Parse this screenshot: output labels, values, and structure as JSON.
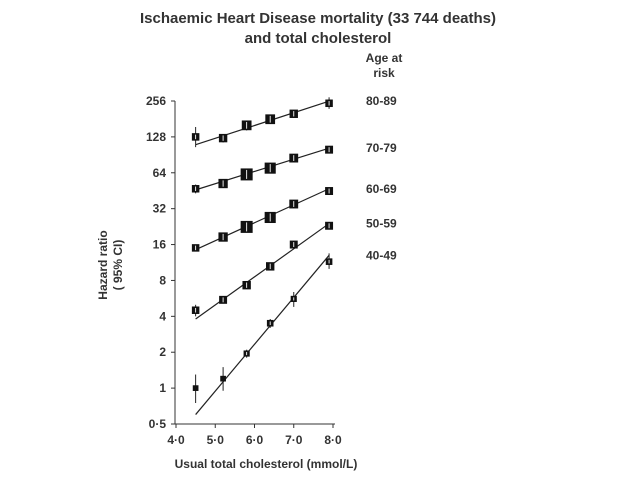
{
  "chart_data": {
    "type": "scatter",
    "title_lines": [
      "Ischaemic Heart Disease mortality (33 744 deaths)",
      "and total cholesterol"
    ],
    "xlabel": "Usual total cholesterol (mmol/L)",
    "ylabel_lines": [
      "Hazard ratio",
      "( 95% CI)"
    ],
    "legend_title_lines": [
      "Age at",
      "risk"
    ],
    "y_scale": "log2",
    "xlim": [
      4.0,
      8.0
    ],
    "ylim": [
      0.5,
      256
    ],
    "x_ticks": [
      4.0,
      5.0,
      6.0,
      7.0,
      8.0
    ],
    "x_tick_labels": [
      "4·0",
      "5·0",
      "6·0",
      "7·0",
      "8·0"
    ],
    "y_ticks": [
      0.5,
      1,
      2,
      4,
      8,
      16,
      32,
      64,
      128,
      256
    ],
    "y_tick_labels": [
      "0·5",
      "1",
      "2",
      "4",
      "8",
      "16",
      "32",
      "64",
      "128",
      "256"
    ],
    "grid": false,
    "series": [
      {
        "name": "80-89",
        "x": [
          4.5,
          5.2,
          5.8,
          6.4,
          7.0,
          7.9
        ],
        "y": [
          128,
          125,
          160,
          180,
          200,
          245
        ],
        "y_low": [
          105,
          115,
          145,
          165,
          185,
          220
        ],
        "y_high": [
          155,
          135,
          175,
          195,
          215,
          275
        ],
        "size": [
          0.5,
          0.6,
          0.75,
          0.75,
          0.6,
          0.5
        ],
        "fit": [
          [
            4.5,
            110
          ],
          [
            7.9,
            255
          ]
        ]
      },
      {
        "name": "70-79",
        "x": [
          4.5,
          5.2,
          5.8,
          6.4,
          7.0,
          7.9
        ],
        "y": [
          47,
          52,
          62,
          70,
          85,
          100
        ],
        "y_low": [
          43,
          49,
          59,
          67,
          79,
          95
        ],
        "y_high": [
          51,
          55,
          65,
          73,
          91,
          106
        ],
        "size": [
          0.5,
          0.7,
          1.0,
          0.9,
          0.65,
          0.55
        ],
        "fit": [
          [
            4.5,
            46
          ],
          [
            7.9,
            103
          ]
        ]
      },
      {
        "name": "60-69",
        "x": [
          4.5,
          5.2,
          5.8,
          6.4,
          7.0,
          7.9
        ],
        "y": [
          15,
          18.5,
          22.5,
          27,
          35,
          45
        ],
        "y_low": [
          14,
          17.5,
          21.5,
          26,
          33,
          43
        ],
        "y_high": [
          16,
          19.5,
          23.5,
          28,
          37,
          47
        ],
        "size": [
          0.5,
          0.7,
          1.0,
          0.9,
          0.65,
          0.55
        ],
        "fit": [
          [
            4.5,
            14.5
          ],
          [
            7.9,
            47
          ]
        ]
      },
      {
        "name": "50-59",
        "x": [
          4.5,
          5.2,
          5.8,
          6.4,
          7.0,
          7.9
        ],
        "y": [
          4.5,
          5.5,
          7.3,
          10.5,
          16,
          23
        ],
        "y_low": [
          4.0,
          5.2,
          6.9,
          9.9,
          15,
          21.5
        ],
        "y_high": [
          5.0,
          5.8,
          7.7,
          11.1,
          17,
          24.5
        ],
        "size": [
          0.5,
          0.55,
          0.6,
          0.6,
          0.55,
          0.55
        ],
        "fit": [
          [
            4.5,
            3.8
          ],
          [
            7.9,
            24
          ]
        ]
      },
      {
        "name": "40-49",
        "x": [
          4.5,
          5.2,
          5.8,
          6.4,
          7.0,
          7.9
        ],
        "y": [
          1.0,
          1.2,
          1.95,
          3.5,
          5.6,
          11.5
        ],
        "y_low": [
          0.75,
          0.95,
          1.8,
          3.2,
          4.8,
          10
        ],
        "y_high": [
          1.3,
          1.5,
          2.1,
          3.8,
          6.4,
          13.5
        ],
        "size": [
          0.3,
          0.3,
          0.35,
          0.4,
          0.35,
          0.4
        ],
        "fit": [
          [
            4.5,
            0.6
          ],
          [
            7.9,
            13
          ]
        ]
      }
    ]
  }
}
